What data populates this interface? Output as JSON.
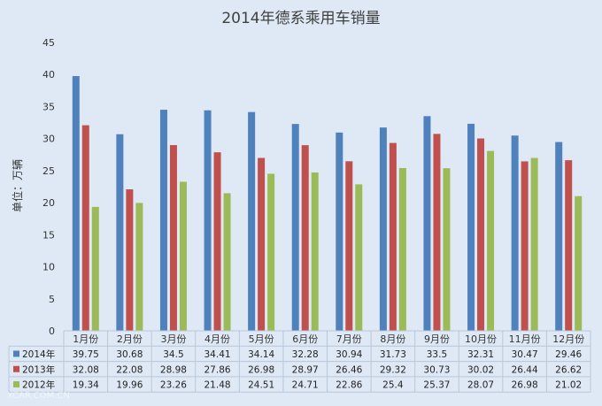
{
  "chart_data": {
    "type": "bar",
    "title": "2014年德系乘用车销量",
    "ylabel": "单位：万辆",
    "xlabel": "",
    "ylim": [
      0,
      45
    ],
    "yticks": [
      0,
      5,
      10,
      15,
      20,
      25,
      30,
      35,
      40,
      45
    ],
    "grid": false,
    "legend": "table-bottom",
    "categories": [
      "1月份",
      "2月份",
      "3月份",
      "4月份",
      "5月份",
      "6月份",
      "7月份",
      "8月份",
      "9月份",
      "10月份",
      "11月份",
      "12月份"
    ],
    "series": [
      {
        "name": "2014年",
        "color": "#4f81bd",
        "values": [
          39.75,
          30.68,
          34.5,
          34.41,
          34.14,
          32.28,
          30.94,
          31.73,
          33.5,
          32.31,
          30.47,
          29.46
        ]
      },
      {
        "name": "2013年",
        "color": "#c0504d",
        "values": [
          32.08,
          22.08,
          28.98,
          27.86,
          26.98,
          28.97,
          26.46,
          29.32,
          30.73,
          30.02,
          26.44,
          26.62
        ]
      },
      {
        "name": "2012年",
        "color": "#9bbb59",
        "values": [
          19.34,
          19.96,
          23.26,
          21.48,
          24.51,
          24.71,
          22.86,
          25.4,
          25.37,
          28.07,
          26.98,
          21.02
        ]
      }
    ],
    "table_values": {
      "2014年": [
        "39.75",
        "30.68",
        "34.5",
        "34.41",
        "34.14",
        "32.28",
        "30.94",
        "31.73",
        "33.5",
        "32.31",
        "30.47",
        "29.46"
      ],
      "2013年": [
        "32.08",
        "22.08",
        "28.98",
        "27.86",
        "26.98",
        "28.97",
        "26.46",
        "29.32",
        "30.73",
        "30.02",
        "26.44",
        "26.62"
      ],
      "2012年": [
        "19.34",
        "19.96",
        "23.26",
        "21.48",
        "24.51",
        "24.71",
        "22.86",
        "25.4",
        "25.37",
        "28.07",
        "26.98",
        "21.02"
      ]
    }
  },
  "watermark": "XCAR.COM.CN"
}
